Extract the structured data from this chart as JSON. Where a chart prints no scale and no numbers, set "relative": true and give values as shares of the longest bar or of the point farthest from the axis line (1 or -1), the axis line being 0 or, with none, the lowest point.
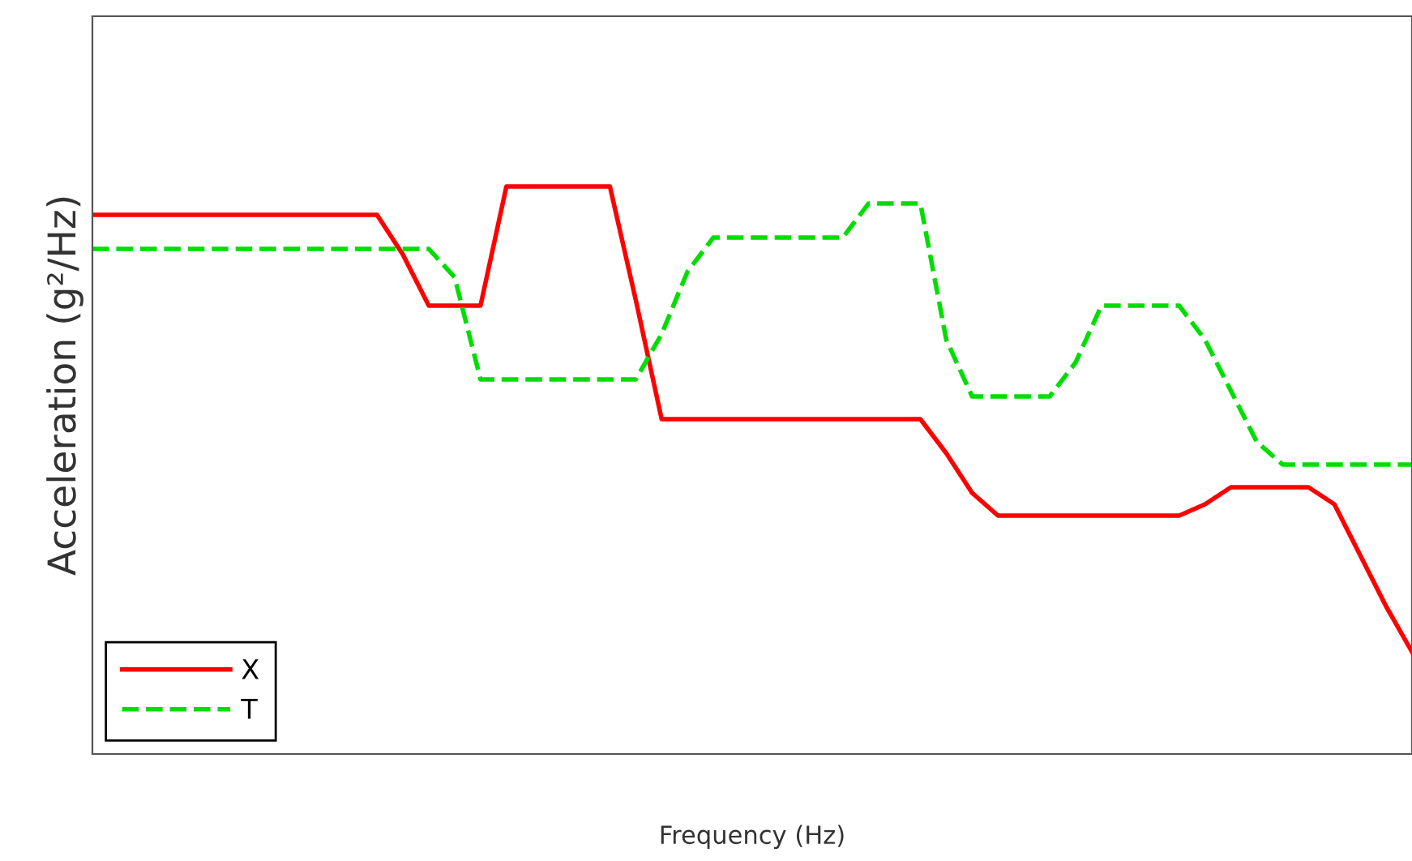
{
  "chart_data": {
    "type": "line",
    "relative": true,
    "xlabel": "Frequency (Hz)",
    "ylabel": "Acceleration (g²/Hz)",
    "categories": [
      null,
      null,
      null,
      null,
      null,
      null,
      null,
      null,
      null,
      null,
      null,
      null,
      null,
      null,
      null,
      null,
      null,
      null,
      null,
      null,
      null,
      null,
      null,
      null,
      null,
      null,
      null,
      null,
      null,
      null,
      null,
      null,
      null,
      null,
      null,
      null,
      null,
      null,
      null,
      null,
      null,
      null,
      null,
      null,
      null,
      null,
      null,
      null,
      null,
      null,
      null,
      null
    ],
    "series": [
      {
        "name": "X",
        "color": "#ff0000",
        "line_style": "solid",
        "values": [
          0.95,
          0.95,
          0.95,
          0.95,
          0.95,
          0.95,
          0.95,
          0.95,
          0.95,
          0.95,
          0.95,
          0.95,
          0.88,
          0.79,
          0.79,
          0.79,
          1.0,
          1.0,
          1.0,
          1.0,
          1.0,
          0.8,
          0.59,
          0.59,
          0.59,
          0.59,
          0.59,
          0.59,
          0.59,
          0.59,
          0.59,
          0.59,
          0.59,
          0.53,
          0.46,
          0.42,
          0.42,
          0.42,
          0.42,
          0.42,
          0.42,
          0.42,
          0.42,
          0.44,
          0.47,
          0.47,
          0.47,
          0.47,
          0.44,
          0.35,
          0.26,
          0.18
        ]
      },
      {
        "name": "T",
        "color": "#00dd00",
        "line_style": "dashed",
        "values": [
          0.89,
          0.89,
          0.89,
          0.89,
          0.89,
          0.89,
          0.89,
          0.89,
          0.89,
          0.89,
          0.89,
          0.89,
          0.89,
          0.89,
          0.84,
          0.66,
          0.66,
          0.66,
          0.66,
          0.66,
          0.66,
          0.66,
          0.74,
          0.85,
          0.91,
          0.91,
          0.91,
          0.91,
          0.91,
          0.91,
          0.97,
          0.97,
          0.97,
          0.73,
          0.63,
          0.63,
          0.63,
          0.63,
          0.69,
          0.79,
          0.79,
          0.79,
          0.79,
          0.73,
          0.64,
          0.55,
          0.51,
          0.51,
          0.51,
          0.51,
          0.51,
          0.51
        ]
      }
    ],
    "legend": "bottom left",
    "grid": false,
    "marker": "none"
  }
}
